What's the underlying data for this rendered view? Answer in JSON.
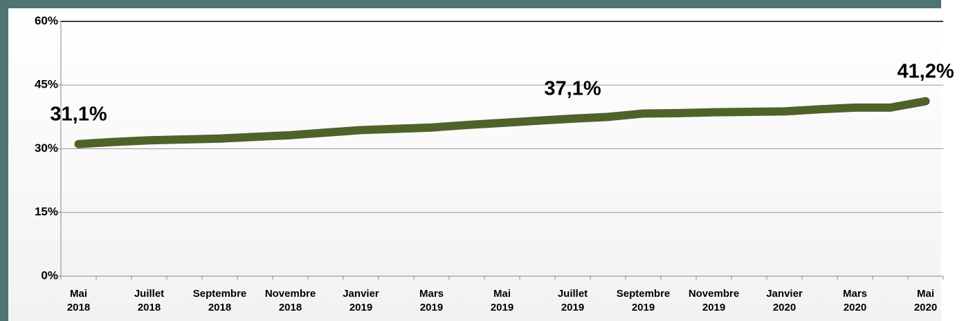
{
  "chart_data": {
    "type": "line",
    "categories": [
      "Mai\n2018",
      null,
      "Juillet\n2018",
      null,
      "Septembre\n2018",
      null,
      "Novembre\n2018",
      null,
      "Janvier\n2019",
      null,
      "Mars\n2019",
      null,
      "Mai\n2019",
      null,
      "Juillet\n2019",
      null,
      "Septembre\n2019",
      null,
      "Novembre\n2019",
      null,
      "Janvier\n2020",
      null,
      "Mars\n2020",
      null,
      "Mai\n2020"
    ],
    "series": [
      {
        "color": "#4f6228",
        "values": [
          31.1,
          31.6,
          32.0,
          32.2,
          32.4,
          32.8,
          33.2,
          33.8,
          34.4,
          34.7,
          35.0,
          35.6,
          36.1,
          36.6,
          37.1,
          37.5,
          38.3,
          38.4,
          38.6,
          38.7,
          38.8,
          39.3,
          39.7,
          39.7,
          41.2
        ],
        "value_labels": [
          "31,1%",
          null,
          null,
          null,
          null,
          null,
          null,
          null,
          null,
          null,
          null,
          null,
          null,
          null,
          "37,1%",
          null,
          null,
          null,
          null,
          null,
          null,
          null,
          null,
          null,
          "41,2%"
        ]
      }
    ],
    "ylim": [
      0,
      60
    ],
    "yticks": [
      {
        "value": 0,
        "label": "0%"
      },
      {
        "value": 15,
        "label": "15%"
      },
      {
        "value": 30,
        "label": "30%"
      },
      {
        "value": 45,
        "label": "45%"
      },
      {
        "value": 60,
        "label": "60%"
      }
    ],
    "grid": true
  }
}
